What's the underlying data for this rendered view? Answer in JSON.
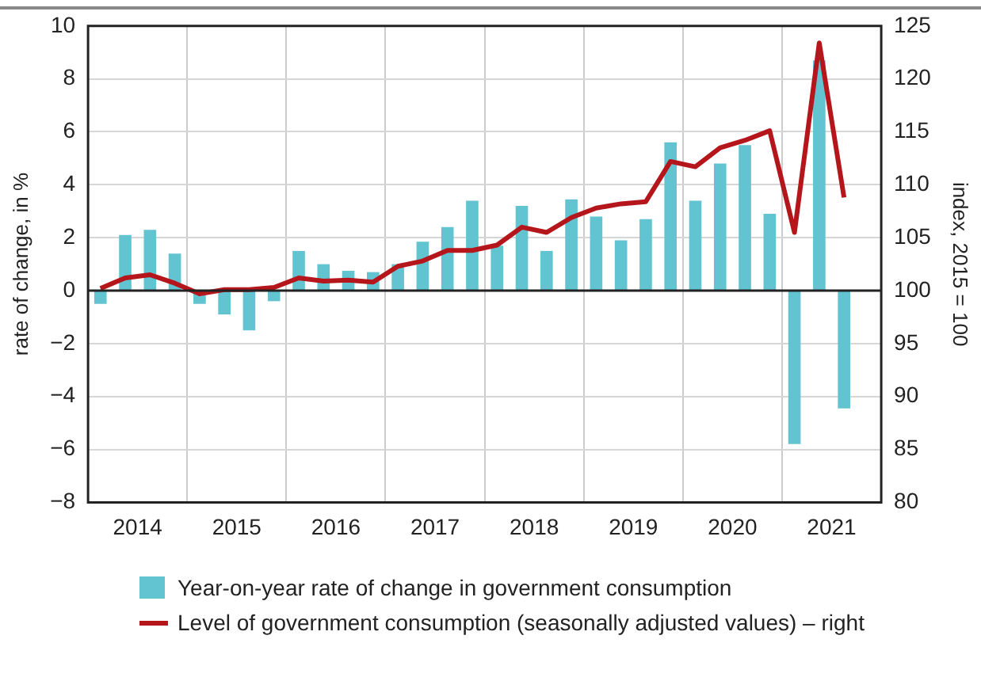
{
  "chart_data": {
    "type": "bar",
    "ylabel": "rate of change, in %",
    "y2label": "index, 2015 = 100",
    "x": [
      2014.125,
      2014.375,
      2014.625,
      2014.875,
      2015.125,
      2015.375,
      2015.625,
      2015.875,
      2016.125,
      2016.375,
      2016.625,
      2016.875,
      2017.125,
      2017.375,
      2017.625,
      2017.875,
      2018.125,
      2018.375,
      2018.625,
      2018.875,
      2019.125,
      2019.375,
      2019.625,
      2019.875,
      2020.125,
      2020.375,
      2020.625,
      2020.875,
      2021.125,
      2021.375,
      2021.625
    ],
    "series": [
      {
        "name": "Year-on-year rate of change in government consumption",
        "color": "#62c3d1",
        "values": [
          -0.5,
          2.1,
          2.3,
          1.4,
          -0.5,
          -0.9,
          -1.5,
          -0.4,
          1.5,
          1.0,
          0.75,
          0.7,
          1.0,
          1.85,
          2.4,
          3.4,
          1.7,
          3.2,
          1.5,
          3.45,
          2.8,
          1.9,
          2.7,
          5.6,
          3.4,
          4.8,
          5.5,
          2.9,
          -5.8,
          8.7,
          -4.45
        ]
      },
      {
        "name": "Level of government consumption (seasonally adjusted values) – right",
        "type": "line",
        "axis": "y2",
        "color": "#b5161b",
        "values": [
          100.2,
          101.2,
          101.5,
          100.7,
          99.7,
          100.1,
          100.1,
          100.3,
          101.2,
          100.9,
          101.0,
          100.8,
          102.3,
          102.8,
          103.8,
          103.8,
          104.3,
          106.0,
          105.5,
          106.9,
          107.8,
          108.2,
          108.4,
          112.2,
          111.7,
          113.5,
          114.2,
          115.1,
          105.5,
          123.4,
          108.8
        ]
      }
    ],
    "xlim": [
      2014,
      2022
    ],
    "xticks": [
      {
        "value": 2014.5,
        "label": "2014"
      },
      {
        "value": 2015,
        "label": null
      },
      {
        "value": 2015.5,
        "label": "2015"
      },
      {
        "value": 2016,
        "label": null
      },
      {
        "value": 2016.5,
        "label": "2016"
      },
      {
        "value": 2017,
        "label": null
      },
      {
        "value": 2017.5,
        "label": "2017"
      },
      {
        "value": 2018,
        "label": null
      },
      {
        "value": 2018.5,
        "label": "2018"
      },
      {
        "value": 2019,
        "label": null
      },
      {
        "value": 2019.5,
        "label": "2019"
      },
      {
        "value": 2020,
        "label": null
      },
      {
        "value": 2020.5,
        "label": "2020"
      },
      {
        "value": 2021,
        "label": null
      },
      {
        "value": 2021.5,
        "label": "2021"
      }
    ],
    "ylim": [
      -8,
      10
    ],
    "yticks": [
      -8,
      -6,
      -4,
      -2,
      0,
      2,
      4,
      6,
      8,
      10
    ],
    "y2lim": [
      80,
      125
    ],
    "y2ticks": [
      80,
      85,
      90,
      95,
      100,
      105,
      110,
      115,
      120,
      125
    ],
    "grid": true,
    "legend": "bottom",
    "marker": "none",
    "line_style": "solid"
  }
}
